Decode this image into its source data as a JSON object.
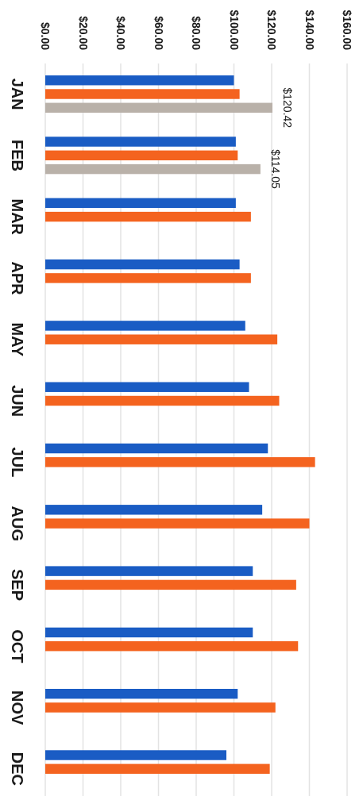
{
  "chart_data": {
    "type": "bar",
    "orientation": "horizontal",
    "categories": [
      "JAN",
      "FEB",
      "MAR",
      "APR",
      "MAY",
      "JUN",
      "JUL",
      "AUG",
      "SEP",
      "OCT",
      "NOV",
      "DEC"
    ],
    "series": [
      {
        "color": "#1a5cc4",
        "values": [
          100,
          101,
          101,
          103,
          106,
          108,
          118,
          115,
          110,
          110,
          102,
          96
        ]
      },
      {
        "color": "#f4631f",
        "values": [
          103,
          102,
          109,
          109,
          123,
          124,
          143,
          140,
          133,
          134,
          122,
          119
        ]
      },
      {
        "color": "#b9b1a9",
        "values": [
          120.42,
          114.05,
          null,
          null,
          null,
          null,
          null,
          null,
          null,
          null,
          null,
          null
        ],
        "value_labels": [
          "$120.42",
          "$114.05",
          null,
          null,
          null,
          null,
          null,
          null,
          null,
          null,
          null,
          null
        ]
      }
    ],
    "xlim": [
      0,
      160
    ],
    "xticks": [
      {
        "value": 0,
        "label": "$0.00"
      },
      {
        "value": 20,
        "label": "$20.00"
      },
      {
        "value": 40,
        "label": "$40.00"
      },
      {
        "value": 60,
        "label": "$60.00"
      },
      {
        "value": 80,
        "label": "$80.00"
      },
      {
        "value": 100,
        "label": "$100.00"
      },
      {
        "value": 120,
        "label": "$120.00"
      },
      {
        "value": 140,
        "label": "$140.00"
      },
      {
        "value": 160,
        "label": "$160.00"
      }
    ],
    "grid": "x"
  }
}
